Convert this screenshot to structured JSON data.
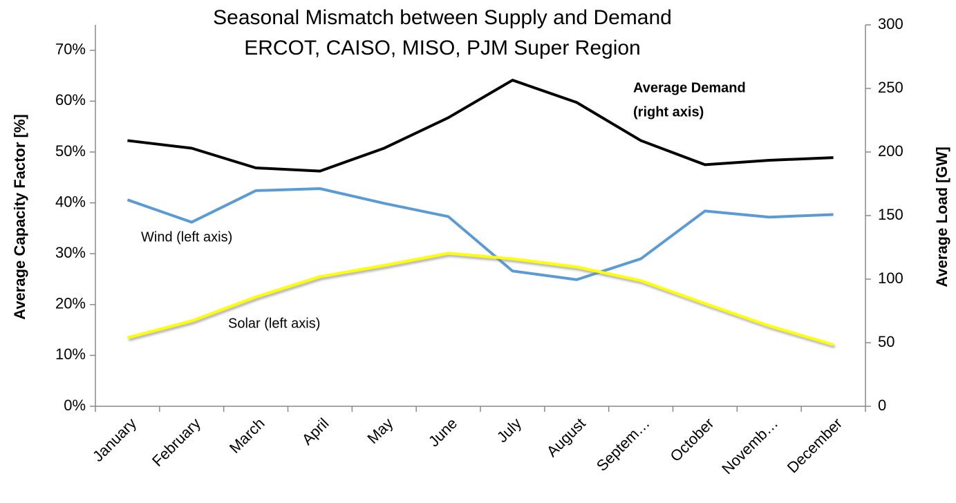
{
  "chart_data": {
    "type": "line",
    "title": "Seasonal Mismatch between Supply and Demand",
    "subtitle": "ERCOT, CAISO, MISO, PJM Super Region",
    "y_label": "Average Capacity Factor [%]",
    "y2_label": "Average Load [GW]",
    "categories": [
      "January",
      "February",
      "March",
      "April",
      "May",
      "June",
      "July",
      "August",
      "Septem…",
      "October",
      "Novemb…",
      "December"
    ],
    "series": [
      {
        "name": "Average Demand",
        "color": "#000000",
        "axis": "y2",
        "values": [
          209,
          203,
          187.5,
          185,
          203,
          227,
          256.5,
          239,
          209,
          190,
          193.5,
          195.6
        ]
      },
      {
        "name": "Wind",
        "color": "#5b9bd5",
        "values": [
          40.6,
          36.2,
          42.4,
          42.8,
          39.9,
          37.3,
          26.6,
          24.9,
          29.0,
          38.4,
          37.2,
          37.7
        ]
      },
      {
        "name": "Solar",
        "color": "#ffff00",
        "values": [
          13.5,
          16.8,
          21.5,
          25.5,
          27.7,
          30.1,
          29.0,
          27.4,
          24.7,
          20.2,
          15.8,
          12.1
        ]
      }
    ],
    "annotations": [
      "Average Demand",
      "(right axis)",
      "Wind (left axis)",
      "Solar (left axis)"
    ],
    "ylim": [
      0,
      75
    ],
    "yticks": [
      {
        "value": 0,
        "label": "0%"
      },
      {
        "value": 10,
        "label": "10%"
      },
      {
        "value": 20,
        "label": "20%"
      },
      {
        "value": 30,
        "label": "30%"
      },
      {
        "value": 40,
        "label": "40%"
      },
      {
        "value": 50,
        "label": "50%"
      },
      {
        "value": 60,
        "label": "60%"
      },
      {
        "value": 70,
        "label": "70%"
      }
    ],
    "y2lim": [
      0,
      300
    ],
    "y2ticks": [
      0,
      50,
      100,
      150,
      200,
      250,
      300
    ],
    "grid": false
  }
}
